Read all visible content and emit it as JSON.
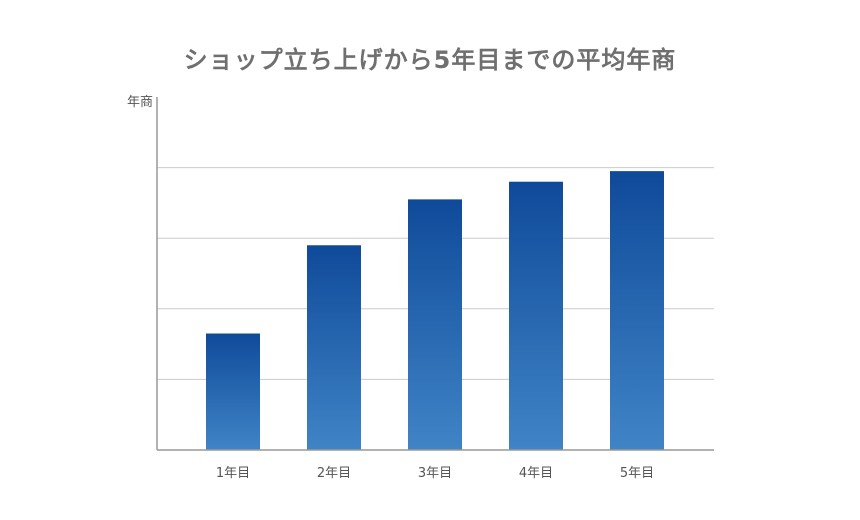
{
  "chart_data": {
    "type": "bar",
    "title": "ショップ立ち上げから5年目までの平均年商",
    "ylabel": "年商",
    "xlabel": "",
    "categories": [
      "1年目",
      "2年目",
      "3年目",
      "4年目",
      "5年目"
    ],
    "values": [
      1.65,
      2.9,
      3.55,
      3.8,
      3.95
    ],
    "ylim": [
      0,
      5
    ],
    "grid": true,
    "legend": "none",
    "colors": {
      "bar_top": "#0f4a9a",
      "bar_bottom": "#4084c6",
      "grid": "#cccccc",
      "axis": "#999999"
    }
  }
}
